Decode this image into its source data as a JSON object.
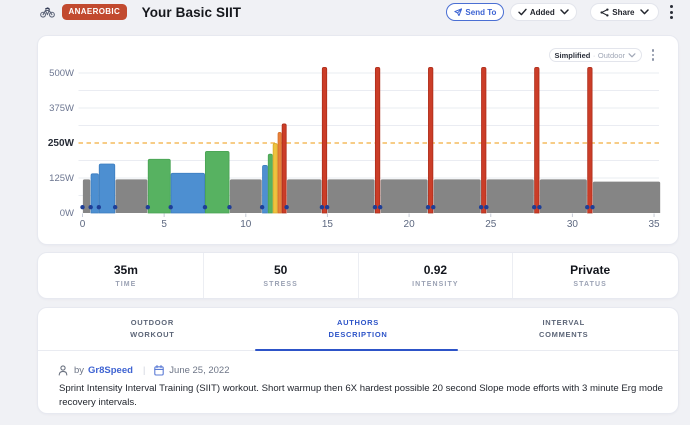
{
  "header": {
    "category_badge": "ANAEROBIC",
    "title": "Your Basic SIIT",
    "send_to_label": "Send To",
    "added_label": "Added",
    "share_label": "Share"
  },
  "chart": {
    "mode_primary": "Simplified",
    "mode_separator": "·",
    "mode_secondary": "Outdoor"
  },
  "chart_data": {
    "type": "bar",
    "title": "Workout power profile",
    "x_unit": "min",
    "y_unit": "W",
    "x_ticks": [
      0,
      5,
      10,
      15,
      20,
      25,
      30,
      35
    ],
    "y_ticks": [
      {
        "value": 0,
        "label": "0W",
        "emphasis": false
      },
      {
        "value": 125,
        "label": "125W",
        "emphasis": false
      },
      {
        "value": 250,
        "label": "250W",
        "emphasis": true
      },
      {
        "value": 375,
        "label": "375W",
        "emphasis": false
      },
      {
        "value": 500,
        "label": "500W",
        "emphasis": false
      }
    ],
    "xlim": [
      0,
      35.4
    ],
    "ylim": [
      0,
      560
    ],
    "grid_step_w": 62.5,
    "threshold_w": 250,
    "legend": "none",
    "grid": "horizontal",
    "segments": [
      {
        "from": 0.0,
        "to": 0.5,
        "watts": 120,
        "color": "gray"
      },
      {
        "from": 0.5,
        "to": 1.0,
        "watts": 140,
        "color": "blue"
      },
      {
        "from": 1.0,
        "to": 2.0,
        "watts": 175,
        "color": "blue"
      },
      {
        "from": 2.0,
        "to": 4.0,
        "watts": 120,
        "color": "gray"
      },
      {
        "from": 4.0,
        "to": 5.4,
        "watts": 192,
        "color": "green"
      },
      {
        "from": 5.4,
        "to": 7.5,
        "watts": 142,
        "color": "blue"
      },
      {
        "from": 7.5,
        "to": 9.0,
        "watts": 220,
        "color": "green"
      },
      {
        "from": 9.0,
        "to": 11.0,
        "watts": 120,
        "color": "gray"
      },
      {
        "from": 11.0,
        "to": 11.35,
        "watts": 170,
        "color": "blue"
      },
      {
        "from": 11.35,
        "to": 11.65,
        "watts": 210,
        "color": "green"
      },
      {
        "from": 11.65,
        "to": 11.95,
        "watts": 248,
        "color": "yellow"
      },
      {
        "from": 11.95,
        "to": 12.2,
        "watts": 288,
        "color": "orange"
      },
      {
        "from": 12.2,
        "to": 12.5,
        "watts": 318,
        "color": "red"
      },
      {
        "from": 12.5,
        "to": 14.66,
        "watts": 120,
        "color": "gray"
      },
      {
        "from": 14.66,
        "to": 14.98,
        "watts": 520,
        "color": "red"
      },
      {
        "from": 14.98,
        "to": 17.91,
        "watts": 120,
        "color": "gray"
      },
      {
        "from": 17.91,
        "to": 18.23,
        "watts": 520,
        "color": "red"
      },
      {
        "from": 18.23,
        "to": 21.16,
        "watts": 120,
        "color": "gray"
      },
      {
        "from": 21.16,
        "to": 21.48,
        "watts": 520,
        "color": "red"
      },
      {
        "from": 21.48,
        "to": 24.41,
        "watts": 120,
        "color": "gray"
      },
      {
        "from": 24.41,
        "to": 24.73,
        "watts": 520,
        "color": "red"
      },
      {
        "from": 24.73,
        "to": 27.66,
        "watts": 120,
        "color": "gray"
      },
      {
        "from": 27.66,
        "to": 27.98,
        "watts": 520,
        "color": "red"
      },
      {
        "from": 27.98,
        "to": 30.91,
        "watts": 120,
        "color": "gray"
      },
      {
        "from": 30.91,
        "to": 31.23,
        "watts": 520,
        "color": "red"
      },
      {
        "from": 31.23,
        "to": 35.4,
        "watts": 112,
        "color": "gray"
      }
    ],
    "markers_min": [
      0,
      0.5,
      1,
      2,
      4,
      5.4,
      7.5,
      9,
      11,
      12.5,
      14.66,
      14.98,
      17.91,
      18.23,
      21.16,
      21.48,
      24.41,
      24.73,
      27.66,
      27.98,
      30.91,
      31.23
    ],
    "colors": {
      "gray": {
        "fill": "#858585",
        "stroke": "#7a7a7a"
      },
      "blue": {
        "fill": "#4d8fd1",
        "stroke": "#3d7ec0"
      },
      "green": {
        "fill": "#57b261",
        "stroke": "#48a253"
      },
      "yellow": {
        "fill": "#eec23f",
        "stroke": "#d9ab28"
      },
      "orange": {
        "fill": "#e8813b",
        "stroke": "#d56d26"
      },
      "red": {
        "fill": "#cb3d28",
        "stroke": "#ad2d1a"
      },
      "marker": "#1e3e97",
      "threshold": "#f2ae3d",
      "gridline": "#eaecf2",
      "tick_label": "#5d6880",
      "y_label": "#6b7590",
      "y_label_emphasis": "#272c37"
    }
  },
  "stats": [
    {
      "value": "35m",
      "label": "TIME"
    },
    {
      "value": "50",
      "label": "STRESS"
    },
    {
      "value": "0.92",
      "label": "INTENSITY"
    },
    {
      "value": "Private",
      "label": "STATUS"
    }
  ],
  "tabs": [
    {
      "lines": [
        "OUTDOOR",
        "WORKOUT"
      ],
      "active": false
    },
    {
      "lines": [
        "AUTHORS",
        "DESCRIPTION"
      ],
      "active": true
    },
    {
      "lines": [
        "INTERVAL",
        "COMMENTS"
      ],
      "active": false
    }
  ],
  "details": {
    "by_label": "by",
    "author": "Gr8Speed",
    "divider": "|",
    "date": "June 25, 2022",
    "description": "Sprint Intensity Interval Training (SIIT) workout. Short warmup then 6X hardest possible 20 second Slope mode efforts with 3 minute Erg mode recovery intervals."
  }
}
